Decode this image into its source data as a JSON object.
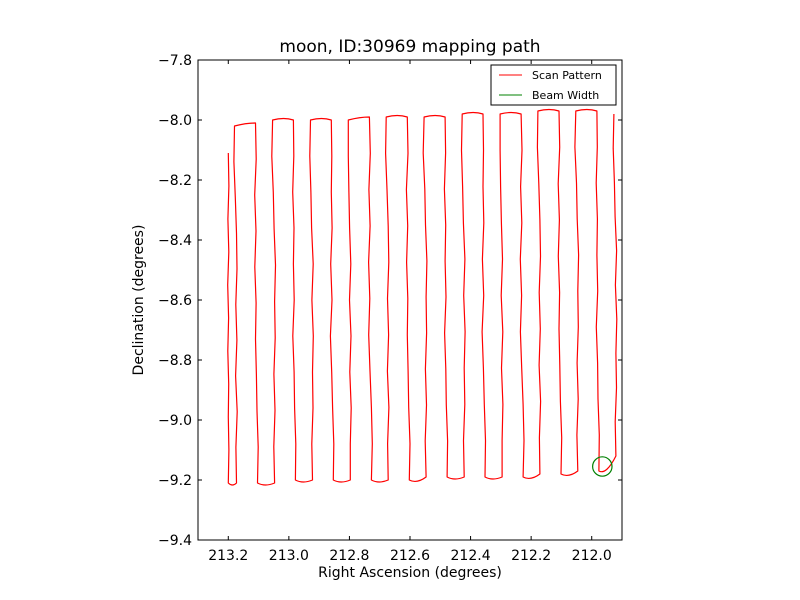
{
  "chart_data": {
    "type": "line",
    "title": "moon, ID:30969 mapping path",
    "xlabel": "Right Ascension (degrees)",
    "ylabel": "Declination (degrees)",
    "xlim": [
      213.3,
      211.9
    ],
    "ylim": [
      -9.4,
      -7.8
    ],
    "x_ticks": [
      213.2,
      213.0,
      212.8,
      212.6,
      212.4,
      212.2,
      212.0
    ],
    "x_tick_labels": [
      "213.2",
      "213.0",
      "212.8",
      "212.6",
      "212.4",
      "212.2",
      "212.0"
    ],
    "y_ticks": [
      -7.8,
      -8.0,
      -8.2,
      -8.4,
      -8.6,
      -8.8,
      -9.0,
      -9.2,
      -9.4
    ],
    "y_tick_labels": [
      "−7.8",
      "−8.0",
      "−8.2",
      "−8.4",
      "−8.6",
      "−8.8",
      "−9.0",
      "−9.2",
      "−9.4"
    ],
    "grid": false,
    "legend_position": "top-right",
    "series": [
      {
        "name": "Scan Pattern",
        "color": "#ff0000",
        "kind": "line",
        "scan_legs": [
          {
            "x": 213.2,
            "y_top": -8.11,
            "y_bottom": -9.21
          },
          {
            "x": 213.173,
            "y_top": -8.02,
            "y_bottom": -9.21
          },
          {
            "x": 213.11,
            "y_top": -8.01,
            "y_bottom": -9.21
          },
          {
            "x": 213.047,
            "y_top": -8.0,
            "y_bottom": -9.21
          },
          {
            "x": 212.985,
            "y_top": -8.0,
            "y_bottom": -9.2
          },
          {
            "x": 212.922,
            "y_top": -8.0,
            "y_bottom": -9.2
          },
          {
            "x": 212.86,
            "y_top": -8.0,
            "y_bottom": -9.2
          },
          {
            "x": 212.797,
            "y_top": -8.0,
            "y_bottom": -9.2
          },
          {
            "x": 212.734,
            "y_top": -7.99,
            "y_bottom": -9.2
          },
          {
            "x": 212.672,
            "y_top": -7.99,
            "y_bottom": -9.2
          },
          {
            "x": 212.609,
            "y_top": -7.99,
            "y_bottom": -9.2
          },
          {
            "x": 212.547,
            "y_top": -7.99,
            "y_bottom": -9.19
          },
          {
            "x": 212.484,
            "y_top": -7.99,
            "y_bottom": -9.19
          },
          {
            "x": 212.421,
            "y_top": -7.98,
            "y_bottom": -9.19
          },
          {
            "x": 212.359,
            "y_top": -7.98,
            "y_bottom": -9.19
          },
          {
            "x": 212.296,
            "y_top": -7.98,
            "y_bottom": -9.19
          },
          {
            "x": 212.233,
            "y_top": -7.98,
            "y_bottom": -9.19
          },
          {
            "x": 212.171,
            "y_top": -7.97,
            "y_bottom": -9.18
          },
          {
            "x": 212.108,
            "y_top": -7.97,
            "y_bottom": -9.18
          },
          {
            "x": 212.046,
            "y_top": -7.97,
            "y_bottom": -9.17
          },
          {
            "x": 211.983,
            "y_top": -7.97,
            "y_bottom": -9.17
          },
          {
            "x": 211.92,
            "y_top": -7.98,
            "y_bottom": -9.12
          }
        ]
      },
      {
        "name": "Beam Width",
        "color": "#008000",
        "kind": "circle",
        "center": [
          211.965,
          -9.155
        ],
        "radius_x": 0.032
      }
    ]
  }
}
